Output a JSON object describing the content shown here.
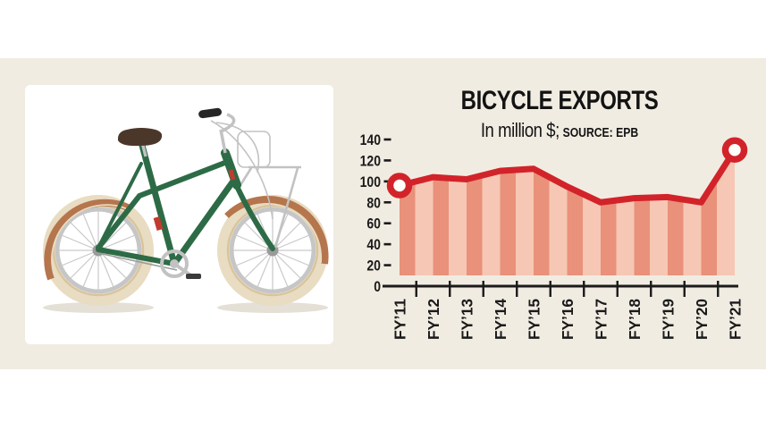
{
  "page": {
    "colors": {
      "outer": "#ffffff",
      "panel": "#f1ece2",
      "card": "#ffffff"
    }
  },
  "bike": {
    "colors": {
      "frame": "#2d6b46",
      "tire": "#e8dcc2",
      "tirewall": "#d9c49b",
      "rim": "#c6c6c6",
      "spoke": "#c9c9c9",
      "hub": "#9a9a9a",
      "fender": "#b5754d",
      "saddle": "#4b372a",
      "metal": "#c2c2c2",
      "grip": "#262626",
      "accent": "#c23b2e",
      "shadow": "#e4e0d6"
    }
  },
  "chart_data": {
    "type": "area",
    "title": "BICYCLE EXPORTS",
    "subtitle": "In million $;",
    "source_label": "SOURCE: EPB",
    "categories": [
      "FY’11",
      "FY’12",
      "FY’13",
      "FY’14",
      "FY’15",
      "FY’16",
      "FY’17",
      "FY’18",
      "FY’19",
      "FY’20",
      "FY’21"
    ],
    "values": [
      96,
      104,
      102,
      110,
      112,
      95,
      80,
      84,
      85,
      80,
      130
    ],
    "ylim": [
      0,
      140
    ],
    "yticks": [
      0,
      20,
      40,
      60,
      80,
      100,
      120,
      140
    ],
    "marker_indices": [
      0,
      10
    ],
    "grid": false,
    "legend": "none",
    "xlabel": "",
    "ylabel": "",
    "colors": {
      "line": "#d2232a",
      "marker_fill": "#fdfdfa",
      "stripe_dark": "#e9917a",
      "stripe_light": "#f6c7b5",
      "axis": "#1a1a1a",
      "text": "#1a1a1a"
    }
  }
}
